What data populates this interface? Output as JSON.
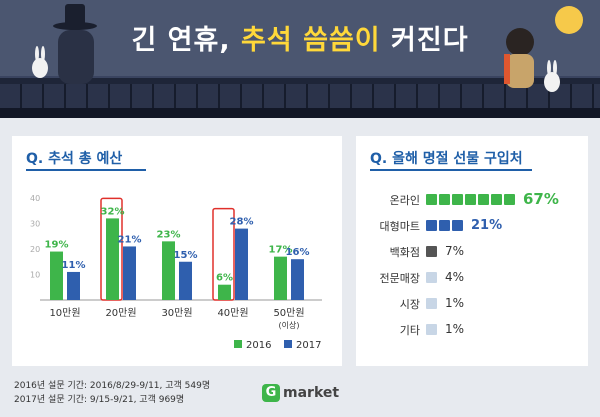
{
  "header": {
    "title_part1": "긴 연휴, ",
    "title_highlight": "추석 씀씀이",
    "title_part2": " 커진다"
  },
  "left_panel": {
    "title": "Q. 추석 총 예산"
  },
  "right_panel": {
    "title": "Q. 올해 명절 선물 구입처"
  },
  "chart_data": [
    {
      "type": "bar",
      "title": "Q. 추석 총 예산",
      "categories": [
        "10만원",
        "20만원",
        "30만원",
        "40만원",
        "50만원 (이상)"
      ],
      "category_notes": [
        "",
        "",
        "",
        "",
        "(이상)"
      ],
      "category_main": [
        "10만원",
        "20만원",
        "30만원",
        "40만원",
        "50만원"
      ],
      "series": [
        {
          "name": "2016",
          "values": [
            19,
            32,
            23,
            6,
            17
          ],
          "labels": [
            "19%",
            "32%",
            "23%",
            "6%",
            "17%"
          ],
          "color": "#3eb54a"
        },
        {
          "name": "2017",
          "values": [
            11,
            21,
            15,
            28,
            16
          ],
          "labels": [
            "11%",
            "21%",
            "15%",
            "28%",
            "16%"
          ],
          "color": "#2f5fae"
        }
      ],
      "ylim": [
        0,
        40
      ],
      "yticks": [
        "10",
        "20",
        "30",
        "40"
      ],
      "highlighted_categories": [
        "20만원",
        "40만원"
      ],
      "highlight_color": "#e0302b",
      "legend_position": "bottom-right"
    },
    {
      "type": "bar",
      "title": "Q. 올해 명절 선물 구입처",
      "categories": [
        "온라인",
        "대형마트",
        "백화점",
        "전문매장",
        "시장",
        "기타"
      ],
      "values": [
        67,
        21,
        7,
        4,
        1,
        1
      ],
      "labels": [
        "67%",
        "21%",
        "7%",
        "4%",
        "1%",
        "1%"
      ],
      "icons_shown": [
        7,
        3,
        1,
        1,
        1,
        1
      ],
      "icon_colors": [
        "#3eb54a",
        "#2f5fae",
        "#555555",
        "#c8d6e6",
        "#c8d6e6",
        "#c8d6e6"
      ],
      "icon": "gift-box-icon"
    }
  ],
  "footer": {
    "line1": "2016년 설문 기간: 2016/8/29-9/11, 고객 549명",
    "line2": "2017년 설문 기간: 9/15-9/21, 고객 969명"
  },
  "logo": {
    "g": "G",
    "text": "market"
  }
}
